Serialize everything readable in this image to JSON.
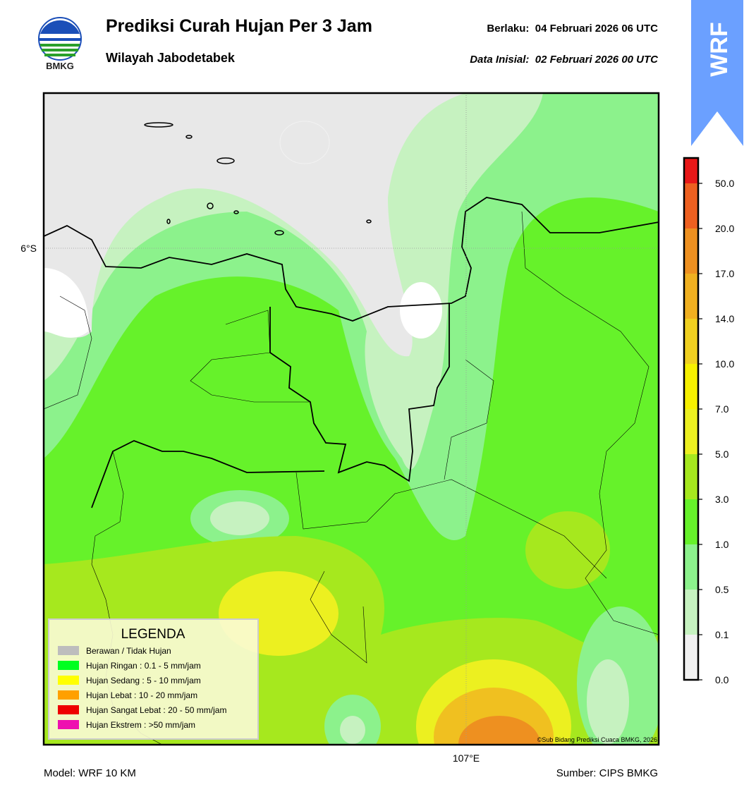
{
  "header": {
    "title": "Prediksi Curah Hujan Per 3 Jam",
    "subtitle": "Wilayah Jabodetabek",
    "valid": "Berlaku:  04 Februari 2026 06 UTC",
    "initial": "Data Inisial:  02 Februari 2026 00 UTC",
    "logo_text": "BMKG",
    "badge": "WRF"
  },
  "map": {
    "lat_label": "6°S",
    "lon_label": "107°E",
    "credit": "©Sub Bidang Prediksi Cuaca BMKG, 2026"
  },
  "legend": {
    "title": "LEGENDA",
    "items": [
      {
        "label": "Berawan / Tidak Hujan",
        "color": "#bdbdbd"
      },
      {
        "label": "Hujan Ringan : 0.1 - 5 mm/jam",
        "color": "#00ff20"
      },
      {
        "label": "Hujan Sedang : 5 - 10 mm/jam",
        "color": "#ffff00"
      },
      {
        "label": "Hujan Lebat : 10 - 20 mm/jam",
        "color": "#ffa000"
      },
      {
        "label": "Hujan Sangat Lebat : 20 - 50 mm/jam",
        "color": "#ee0000"
      },
      {
        "label": "Hujan Ekstrem : >50 mm/jam",
        "color": "#ee10b0"
      }
    ]
  },
  "colorbar": {
    "labels": [
      "0.0",
      "0.1",
      "0.5",
      "1.0",
      "3.0",
      "5.0",
      "7.0",
      "10.0",
      "14.0",
      "17.0",
      "20.0",
      "50.0"
    ],
    "colors": [
      "#f0f0f0",
      "#c6f2c0",
      "#8cf28c",
      "#66f22a",
      "#a6e81e",
      "#ecf020",
      "#f6f000",
      "#f0d020",
      "#f0b020",
      "#ee9020",
      "#ee6020",
      "#e81818",
      "#e020b8"
    ]
  },
  "footer": {
    "model": "Model: WRF 10 KM",
    "source": "Sumber: CIPS BMKG"
  }
}
